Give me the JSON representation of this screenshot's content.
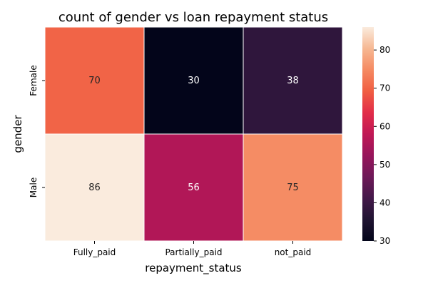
{
  "chart_data": {
    "type": "heatmap",
    "title": "count of gender vs loan repayment status",
    "xlabel": "repayment_status",
    "ylabel": "gender",
    "x_categories": [
      "Fully_paid",
      "Partially_paid",
      "not_paid"
    ],
    "y_categories": [
      "Female",
      "Male"
    ],
    "values": [
      [
        70,
        30,
        38
      ],
      [
        86,
        56,
        75
      ]
    ],
    "colorbar": {
      "min": 30,
      "max": 86,
      "ticks": [
        30,
        40,
        50,
        60,
        70,
        80
      ],
      "colormap": "rocket"
    },
    "annotations": true
  }
}
